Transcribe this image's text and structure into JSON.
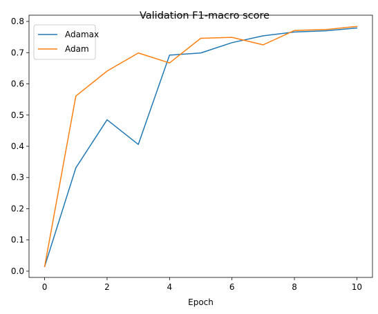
{
  "chart_data": {
    "type": "line",
    "title": "Validation  F1-macro score",
    "xlabel": "Epoch",
    "ylabel": "",
    "x": [
      0,
      1,
      2,
      3,
      4,
      5,
      6,
      7,
      8,
      9,
      10
    ],
    "xlim": [
      -0.5,
      10.5
    ],
    "ylim": [
      -0.02,
      0.82
    ],
    "xticks": [
      0,
      2,
      4,
      6,
      8,
      10
    ],
    "yticks": [
      0.0,
      0.1,
      0.2,
      0.3,
      0.4,
      0.5,
      0.6,
      0.7,
      0.8
    ],
    "xtick_labels": [
      "0",
      "2",
      "4",
      "6",
      "8",
      "10"
    ],
    "ytick_labels": [
      "0.0",
      "0.1",
      "0.2",
      "0.3",
      "0.4",
      "0.5",
      "0.6",
      "0.7",
      "0.8"
    ],
    "grid": false,
    "legend_position": "top-left",
    "series": [
      {
        "name": "Adamax",
        "color": "#1f77b4",
        "values": [
          0.015,
          0.331,
          0.485,
          0.406,
          0.692,
          0.699,
          0.732,
          0.754,
          0.766,
          0.77,
          0.779
        ]
      },
      {
        "name": "Adam",
        "color": "#ff7f0e",
        "values": [
          0.015,
          0.561,
          0.641,
          0.699,
          0.667,
          0.746,
          0.749,
          0.725,
          0.771,
          0.774,
          0.784
        ]
      }
    ]
  }
}
